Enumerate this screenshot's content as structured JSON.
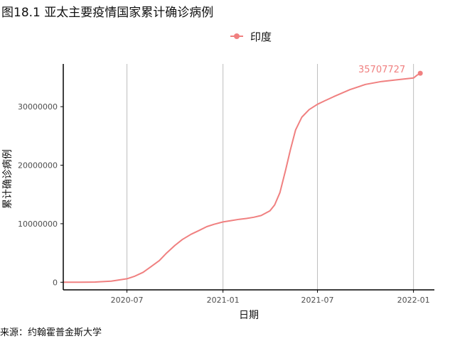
{
  "figure": {
    "title": "图18.1 亚太主要疫情国家累计确诊病例",
    "source": "来源：约翰霍普金斯大学"
  },
  "colors": {
    "series": "#f08080",
    "grid": "#bdbdbd",
    "axis": "#000000"
  },
  "chart_data": {
    "type": "line",
    "xlabel": "日期",
    "ylabel": "累计确诊病例",
    "legend_position": "top",
    "grid": "vertical major only",
    "x_range": [
      "2020-03-01",
      "2022-02-10"
    ],
    "ylim": [
      -1300000,
      37300000
    ],
    "x_ticks": [
      {
        "date": "2020-07-01",
        "label": "2020-07"
      },
      {
        "date": "2021-01-01",
        "label": "2021-01"
      },
      {
        "date": "2021-07-01",
        "label": "2021-07"
      },
      {
        "date": "2022-01-01",
        "label": "2022-01"
      }
    ],
    "y_ticks": [
      {
        "value": 0,
        "label": "0"
      },
      {
        "value": 10000000,
        "label": "10000000"
      },
      {
        "value": 20000000,
        "label": "20000000"
      },
      {
        "value": 30000000,
        "label": "30000000"
      }
    ],
    "series": [
      {
        "name": "印度",
        "points": [
          [
            "2020-03-01",
            0
          ],
          [
            "2020-04-01",
            2000
          ],
          [
            "2020-05-01",
            35000
          ],
          [
            "2020-06-01",
            190000
          ],
          [
            "2020-07-01",
            590000
          ],
          [
            "2020-07-15",
            1000000
          ],
          [
            "2020-08-01",
            1700000
          ],
          [
            "2020-08-15",
            2600000
          ],
          [
            "2020-09-01",
            3700000
          ],
          [
            "2020-09-15",
            5000000
          ],
          [
            "2020-10-01",
            6300000
          ],
          [
            "2020-10-15",
            7300000
          ],
          [
            "2020-11-01",
            8200000
          ],
          [
            "2020-11-15",
            8800000
          ],
          [
            "2020-12-01",
            9500000
          ],
          [
            "2020-12-15",
            9900000
          ],
          [
            "2021-01-01",
            10300000
          ],
          [
            "2021-01-15",
            10500000
          ],
          [
            "2021-02-01",
            10750000
          ],
          [
            "2021-02-15",
            10900000
          ],
          [
            "2021-03-01",
            11100000
          ],
          [
            "2021-03-15",
            11400000
          ],
          [
            "2021-04-01",
            12200000
          ],
          [
            "2021-04-10",
            13200000
          ],
          [
            "2021-04-20",
            15300000
          ],
          [
            "2021-05-01",
            19200000
          ],
          [
            "2021-05-10",
            22600000
          ],
          [
            "2021-05-20",
            26000000
          ],
          [
            "2021-06-01",
            28200000
          ],
          [
            "2021-06-15",
            29500000
          ],
          [
            "2021-07-01",
            30400000
          ],
          [
            "2021-07-15",
            31000000
          ],
          [
            "2021-08-01",
            31700000
          ],
          [
            "2021-09-01",
            32900000
          ],
          [
            "2021-10-01",
            33800000
          ],
          [
            "2021-11-01",
            34300000
          ],
          [
            "2021-12-01",
            34600000
          ],
          [
            "2022-01-01",
            34900000
          ],
          [
            "2022-01-08",
            35400000
          ],
          [
            "2022-01-14",
            35707727
          ]
        ],
        "end_label": "35707727"
      }
    ]
  }
}
